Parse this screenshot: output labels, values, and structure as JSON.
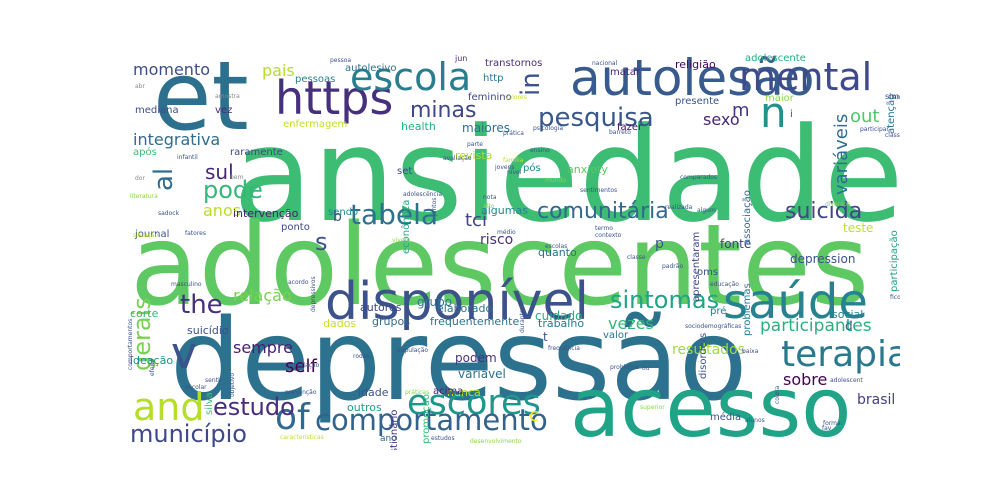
{
  "words": [
    {
      "text": "ansiedade",
      "color": "#3dbc74"
    },
    {
      "text": "adolescentes",
      "color": "#5ec962"
    },
    {
      "text": "depressão",
      "color": "#2c728e"
    },
    {
      "text": "acesso",
      "color": "#20a386"
    },
    {
      "text": "et",
      "color": "#2d708e"
    },
    {
      "text": "disponível",
      "color": "#3b528b"
    },
    {
      "text": "autolesão",
      "color": "#375b8d"
    },
    {
      "text": "saúde",
      "color": "#26828e"
    },
    {
      "text": "https",
      "color": "#46307e"
    },
    {
      "text": "escola",
      "color": "#287d8e"
    },
    {
      "text": "mental",
      "color": "#3e4a89"
    },
    {
      "text": "n",
      "color": "#21918c"
    },
    {
      "text": "and",
      "color": "#b5de2b"
    },
    {
      "text": "terapia",
      "color": "#2a788e"
    },
    {
      "text": "escores",
      "color": "#1f968b"
    },
    {
      "text": "comportamento",
      "color": "#33628d"
    },
    {
      "text": "of",
      "color": "#31688e"
    },
    {
      "text": "v",
      "color": "#3b528b"
    },
    {
      "text": "tabela",
      "color": "#2c728e"
    },
    {
      "text": "estudo",
      "color": "#472d7b"
    },
    {
      "text": "pesquisa",
      "color": "#38588c"
    },
    {
      "text": "sintomas",
      "color": "#20a486"
    },
    {
      "text": "the",
      "color": "#46307e"
    },
    {
      "text": "suicida",
      "color": "#404688"
    },
    {
      "text": "comunitária",
      "color": "#31688e"
    },
    {
      "text": "município",
      "color": "#3e4989"
    },
    {
      "text": "minas",
      "color": "#3f4788"
    },
    {
      "text": "in",
      "color": "#3b528b"
    },
    {
      "text": "al",
      "color": "#2f6c8e"
    },
    {
      "text": "s",
      "color": "#3b528b"
    },
    {
      "text": "pode",
      "color": "#35b779"
    },
    {
      "text": "sul",
      "color": "#482677"
    },
    {
      "text": "tci",
      "color": "#414487"
    },
    {
      "text": "gerais",
      "color": "#7ad151"
    },
    {
      "text": "participantes",
      "color": "#2ab07f"
    },
    {
      "text": "momento",
      "color": "#3d4d8a"
    },
    {
      "text": "integrativa",
      "color": "#2f6c8e"
    },
    {
      "text": "sobre",
      "color": "#440154"
    },
    {
      "text": "m",
      "color": "#453781"
    },
    {
      "text": "sexo",
      "color": "#482878"
    },
    {
      "text": "out",
      "color": "#52c569"
    },
    {
      "text": "variáveis",
      "color": "#2e6e8e"
    },
    {
      "text": "sempre",
      "color": "#481f70"
    },
    {
      "text": "anos",
      "color": "#b8de29"
    },
    {
      "text": "relação",
      "color": "#7ad151"
    },
    {
      "text": "self",
      "color": "#440154"
    },
    {
      "text": "vezes",
      "color": "#35b779"
    },
    {
      "text": "brasil",
      "color": "#424086"
    },
    {
      "text": "pais",
      "color": "#b5de2b"
    },
    {
      "text": "resultados",
      "color": "#a0da39"
    },
    {
      "text": "depression",
      "color": "#3b518b"
    },
    {
      "text": "fonte",
      "color": "#433e85"
    },
    {
      "text": "teste",
      "color": "#bddf26"
    },
    {
      "text": "variável",
      "color": "#2d708e"
    },
    {
      "text": "cuidado",
      "color": "#26ad81"
    },
    {
      "text": "risco",
      "color": "#46327e"
    },
    {
      "text": "grupo",
      "color": "#2a788e"
    },
    {
      "text": "intervenção",
      "color": "#482173"
    },
    {
      "text": "autores",
      "color": "#3f4788"
    },
    {
      "text": "elaborado",
      "color": "#2c738e"
    },
    {
      "text": "frequentemente",
      "color": "#2c738e"
    },
    {
      "text": "trabalho",
      "color": "#2a768e"
    },
    {
      "text": "dados",
      "color": "#c8e020"
    },
    {
      "text": "grupos",
      "color": "#2e6f8e"
    },
    {
      "text": "suicídio",
      "color": "#3c4f8a"
    },
    {
      "text": "ideação",
      "color": "#20928c"
    },
    {
      "text": "corte",
      "color": "#35b779"
    },
    {
      "text": "outros",
      "color": "#1fa188"
    },
    {
      "text": "idade",
      "color": "#3b528b"
    },
    {
      "text": "nunca",
      "color": "#bddf26"
    },
    {
      "text": "podem",
      "color": "#46327e"
    },
    {
      "text": "social",
      "color": "#26828e"
    },
    {
      "text": "maiores",
      "color": "#2e6e8e"
    },
    {
      "text": "health",
      "color": "#2ab07f"
    },
    {
      "text": "revista",
      "color": "#b2dd2d"
    },
    {
      "text": "algumas",
      "color": "#24868e"
    },
    {
      "text": "anxiety",
      "color": "#58c765"
    },
    {
      "text": "após",
      "color": "#40bd72"
    },
    {
      "text": "raramente",
      "color": "#3f4889"
    },
    {
      "text": "quanto",
      "color": "#2d718e"
    },
    {
      "text": "autolesivo",
      "color": "#2d708e"
    },
    {
      "text": "pessoas",
      "color": "#26828e"
    },
    {
      "text": "transtornos",
      "color": "#472c7a"
    },
    {
      "text": "religião",
      "color": "#450559"
    },
    {
      "text": "adolescente",
      "color": "#26ad81"
    },
    {
      "text": "presente",
      "color": "#39568c"
    },
    {
      "text": "maior",
      "color": "#8bd646"
    },
    {
      "text": "enfermagem",
      "color": "#c2df23"
    },
    {
      "text": "feminino",
      "color": "#3f4788"
    },
    {
      "text": "matar",
      "color": "#482475"
    },
    {
      "text": "fazer",
      "color": "#471164"
    },
    {
      "text": "problemas",
      "color": "#2a788e"
    },
    {
      "text": "associação",
      "color": "#2f6b8e"
    },
    {
      "text": "apresentaram",
      "color": "#404588"
    },
    {
      "text": "participação",
      "color": "#1fa088"
    },
    {
      "text": "atenção",
      "color": "#2e6e8e"
    },
    {
      "text": "disorders",
      "color": "#3b528b"
    },
    {
      "text": "questionário",
      "color": "#46327e"
    },
    {
      "text": "promoção",
      "color": "#38b977"
    },
    {
      "text": "econômica",
      "color": "#21a685"
    },
    {
      "text": "journal",
      "color": "#3b528b"
    },
    {
      "text": "silva",
      "color": "#40bd72"
    },
    {
      "text": "acima",
      "color": "#482173"
    },
    {
      "text": "média",
      "color": "#3b528b"
    },
    {
      "text": "oms",
      "color": "#3b528b"
    },
    {
      "text": "mediana",
      "color": "#3d4e8a"
    },
    {
      "text": "vez",
      "color": "#482979"
    },
    {
      "text": "ponto",
      "color": "#3f4788"
    },
    {
      "text": "sendo",
      "color": "#24878e"
    },
    {
      "text": "set",
      "color": "#3e4a89"
    },
    {
      "text": "pós",
      "color": "#24878e"
    },
    {
      "text": "jun",
      "color": "#482878"
    },
    {
      "text": "http",
      "color": "#2c728e"
    },
    {
      "text": "sim",
      "color": "#3c4f8a"
    },
    {
      "text": "valor",
      "color": "#2d718e"
    },
    {
      "text": "pré",
      "color": "#2a778e"
    },
    {
      "text": "d",
      "color": "#3b528b"
    },
    {
      "text": "c",
      "color": "#fde725"
    },
    {
      "text": "b",
      "color": "#3b528b"
    },
    {
      "text": "p",
      "color": "#3b528b"
    },
    {
      "text": "t",
      "color": "#3b528b"
    },
    {
      "text": "i",
      "color": "#3b528b"
    },
    {
      "text": "ano",
      "color": "#33638d"
    },
    {
      "text": "amostra",
      "color": "#888888"
    },
    {
      "text": "abr",
      "color": "#888888"
    },
    {
      "text": "dor",
      "color": "#888888"
    },
    {
      "text": "bem",
      "color": "#888888"
    },
    {
      "text": "literatura",
      "color": "#8bd646"
    },
    {
      "text": "sadock",
      "color": "#3b528b"
    },
    {
      "text": "infantil",
      "color": "#3b528b"
    },
    {
      "text": "situação",
      "color": "#c2df23"
    },
    {
      "text": "fatores",
      "color": "#3b528b"
    },
    {
      "text": "masculino",
      "color": "#3b528b"
    },
    {
      "text": "acordo",
      "color": "#3b528b"
    },
    {
      "text": "comportamentos",
      "color": "#3b528b"
    },
    {
      "text": "efeito",
      "color": "#3b528b"
    },
    {
      "text": "objetivo",
      "color": "#3b528b"
    },
    {
      "text": "depressivos",
      "color": "#3b528b"
    },
    {
      "text": "rodas",
      "color": "#3b528b"
    },
    {
      "text": "população",
      "color": "#3b528b"
    },
    {
      "text": "correlação",
      "color": "#3b528b"
    },
    {
      "text": "prevenção",
      "color": "#3b528b"
    },
    {
      "text": "escolar",
      "color": "#3b528b"
    },
    {
      "text": "sentir",
      "color": "#3b528b"
    },
    {
      "text": "características",
      "color": "#c2df23"
    },
    {
      "text": "adolescência",
      "color": "#3b528b"
    },
    {
      "text": "estudos",
      "color": "#3b528b"
    },
    {
      "text": "desenvolvimento",
      "color": "#8bd646"
    },
    {
      "text": "frequência",
      "color": "#3b528b"
    },
    {
      "text": "escolas",
      "color": "#3b528b"
    },
    {
      "text": "contexto",
      "color": "#3b528b"
    },
    {
      "text": "práticas",
      "color": "#8bd646"
    },
    {
      "text": "nota",
      "color": "#3b528b"
    },
    {
      "text": "médio",
      "color": "#3b528b"
    },
    {
      "text": "vivem",
      "color": "#8bd646"
    },
    {
      "text": "alto",
      "color": "#8bd646"
    },
    {
      "text": "realizada",
      "color": "#3b528b"
    },
    {
      "text": "algum",
      "color": "#3b528b"
    },
    {
      "text": "termo",
      "color": "#3b528b"
    },
    {
      "text": "classe",
      "color": "#3b528b"
    },
    {
      "text": "padrão",
      "color": "#3b528b"
    },
    {
      "text": "sociodemográficas",
      "color": "#3b528b"
    },
    {
      "text": "educação",
      "color": "#3b528b"
    },
    {
      "text": "ou",
      "color": "#3b528b"
    },
    {
      "text": "problema",
      "color": "#3b528b"
    },
    {
      "text": "durante",
      "color": "#3b528b"
    },
    {
      "text": "coleta",
      "color": "#3b528b"
    },
    {
      "text": "forma",
      "color": "#3b528b"
    },
    {
      "text": "adolescent",
      "color": "#3b528b"
    },
    {
      "text": "fico",
      "color": "#3b528b"
    },
    {
      "text": "superior",
      "color": "#8bd646"
    },
    {
      "text": "fav",
      "color": "#3b528b"
    },
    {
      "text": "análise",
      "color": "#3b528b"
    },
    {
      "text": "comparados",
      "color": "#3b528b"
    },
    {
      "text": "avaliação",
      "color": "#3b528b"
    },
    {
      "text": "família",
      "color": "#c2df23"
    },
    {
      "text": "jovens",
      "color": "#3b528b"
    },
    {
      "text": "nível",
      "color": "#3b528b"
    },
    {
      "text": "ensino",
      "color": "#3b528b"
    },
    {
      "text": "prática",
      "color": "#3b528b"
    },
    {
      "text": "psicologia",
      "color": "#3b528b"
    },
    {
      "text": "barreto",
      "color": "#3b528b"
    },
    {
      "text": "classificação",
      "color": "#3b528b"
    },
    {
      "text": "valores",
      "color": "#c2df23"
    },
    {
      "text": "nacional",
      "color": "#3b528b"
    },
    {
      "text": "pessoa",
      "color": "#3b528b"
    },
    {
      "text": "participar",
      "color": "#3b528b"
    },
    {
      "text": "juntos",
      "color": "#3b528b"
    },
    {
      "text": "parte",
      "color": "#3b528b"
    },
    {
      "text": "mundo",
      "color": "#8bd646"
    },
    {
      "text": "sentimentos",
      "color": "#3b528b"
    },
    {
      "text": "alunos",
      "color": "#3b528b"
    },
    {
      "text": "diversos",
      "color": "#8bd646"
    },
    {
      "text": "baixa",
      "color": "#3b528b"
    }
  ]
}
